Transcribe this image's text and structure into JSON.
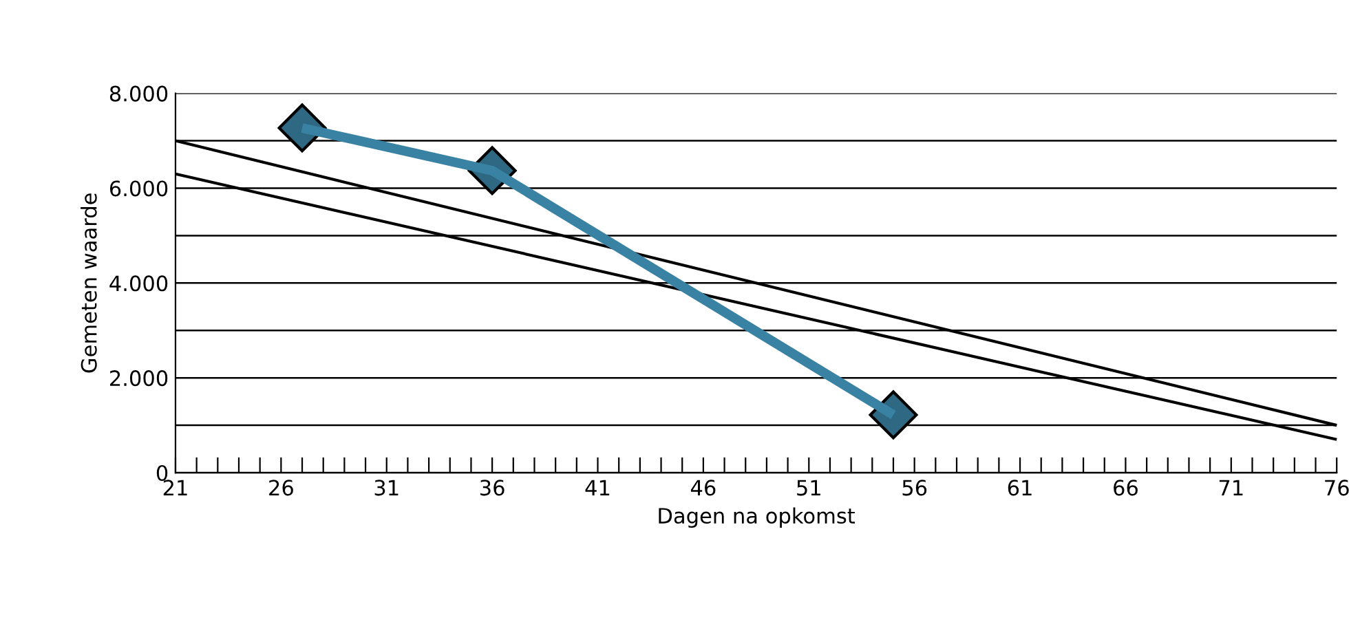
{
  "chart_data": {
    "type": "line",
    "xlabel": "Dagen na opkomst",
    "ylabel": "Gemeten waarde",
    "xlim": [
      21,
      76
    ],
    "ylim": [
      0,
      8000
    ],
    "xticks": [
      21,
      {
        "value": 22,
        "label": null
      },
      {
        "value": 23,
        "label": null
      },
      {
        "value": 24,
        "label": null
      },
      {
        "value": 25,
        "label": null
      },
      26,
      {
        "value": 27,
        "label": null
      },
      {
        "value": 28,
        "label": null
      },
      {
        "value": 29,
        "label": null
      },
      {
        "value": 30,
        "label": null
      },
      31,
      {
        "value": 32,
        "label": null
      },
      {
        "value": 33,
        "label": null
      },
      {
        "value": 34,
        "label": null
      },
      {
        "value": 35,
        "label": null
      },
      36,
      {
        "value": 37,
        "label": null
      },
      {
        "value": 38,
        "label": null
      },
      {
        "value": 39,
        "label": null
      },
      {
        "value": 40,
        "label": null
      },
      41,
      {
        "value": 42,
        "label": null
      },
      {
        "value": 43,
        "label": null
      },
      {
        "value": 44,
        "label": null
      },
      {
        "value": 45,
        "label": null
      },
      46,
      {
        "value": 47,
        "label": null
      },
      {
        "value": 48,
        "label": null
      },
      {
        "value": 49,
        "label": null
      },
      {
        "value": 50,
        "label": null
      },
      51,
      {
        "value": 52,
        "label": null
      },
      {
        "value": 53,
        "label": null
      },
      {
        "value": 54,
        "label": null
      },
      {
        "value": 55,
        "label": null
      },
      56,
      {
        "value": 57,
        "label": null
      },
      {
        "value": 58,
        "label": null
      },
      {
        "value": 59,
        "label": null
      },
      {
        "value": 60,
        "label": null
      },
      61,
      {
        "value": 62,
        "label": null
      },
      {
        "value": 63,
        "label": null
      },
      {
        "value": 64,
        "label": null
      },
      {
        "value": 65,
        "label": null
      },
      66,
      {
        "value": 67,
        "label": null
      },
      {
        "value": 68,
        "label": null
      },
      {
        "value": 69,
        "label": null
      },
      {
        "value": 70,
        "label": null
      },
      71,
      {
        "value": 72,
        "label": null
      },
      {
        "value": 73,
        "label": null
      },
      {
        "value": 74,
        "label": null
      },
      {
        "value": 75,
        "label": null
      },
      76
    ],
    "yticks": [
      {
        "value": 0,
        "label": "0"
      },
      {
        "value": 1000,
        "label": null
      },
      {
        "value": 2000,
        "label": "2.000"
      },
      {
        "value": 3000,
        "label": null
      },
      {
        "value": 4000,
        "label": "4.000"
      },
      {
        "value": 5000,
        "label": null
      },
      {
        "value": 6000,
        "label": "6.000"
      },
      {
        "value": 7000,
        "label": null
      },
      {
        "value": 8000,
        "label": "8.000"
      }
    ],
    "grid": "y",
    "legend": false,
    "series": [
      {
        "color": "#000000",
        "x": [
          21,
          76
        ],
        "values": [
          7000,
          1000
        ],
        "marker": "none"
      },
      {
        "color": "#000000",
        "x": [
          21,
          76
        ],
        "values": [
          6300,
          700
        ],
        "marker": "none"
      },
      {
        "color": "#3a82a3",
        "x": [
          27,
          36,
          55
        ],
        "values": [
          7270,
          6370,
          1220
        ],
        "marker": "diamond"
      }
    ]
  }
}
